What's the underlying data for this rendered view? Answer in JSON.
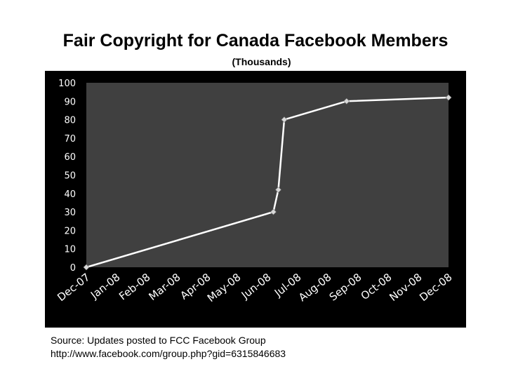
{
  "slide": {
    "title": "Fair Copyright for Canada Facebook Members",
    "subtitle": "(Thousands)",
    "source_line1": "Source: Updates posted to FCC Facebook Group",
    "source_line2": "http://www.facebook.com/group.php?gid=6315846683"
  },
  "colors": {
    "frame": "#000000",
    "plot_area": "#404040",
    "line": "#ffffff",
    "marker": "#d9d9d9",
    "tick_text": "#ffffff"
  },
  "chart_data": {
    "type": "line",
    "title": "Fair Copyright for Canada Facebook Members",
    "subtitle": "(Thousands)",
    "xlabel": "",
    "ylabel": "",
    "x_range": [
      "Dec-07",
      "Dec-08"
    ],
    "categories": [
      "Dec-07",
      "Jan-08",
      "Feb-08",
      "Mar-08",
      "Apr-08",
      "May-08",
      "Jun-08",
      "Jul-08",
      "Aug-08",
      "Sep-08",
      "Oct-08",
      "Nov-08",
      "Dec-08"
    ],
    "yticks": [
      "0",
      "10",
      "20",
      "30",
      "40",
      "50",
      "60",
      "70",
      "80",
      "90",
      "100"
    ],
    "ylim": [
      0,
      100
    ],
    "grid": false,
    "legend": "none",
    "series": [
      {
        "points": [
          {
            "x": "2007-12-01",
            "y": 0
          },
          {
            "x": "2008-06-07",
            "y": 30
          },
          {
            "x": "2008-06-12",
            "y": 42
          },
          {
            "x": "2008-06-18",
            "y": 80
          },
          {
            "x": "2008-08-20",
            "y": 90
          },
          {
            "x": "2008-12-01",
            "y": 92
          }
        ]
      }
    ]
  }
}
